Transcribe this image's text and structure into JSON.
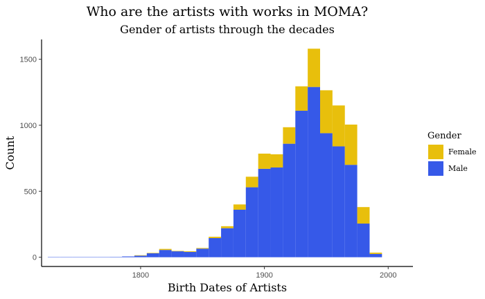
{
  "chart_data": {
    "type": "bar",
    "title": "Who are the artists with works in MOMA?",
    "subtitle": "Gender of artists through the decades",
    "xlabel": "Birth Dates of Artists",
    "ylabel": "Count",
    "xlim": [
      1720,
      2020
    ],
    "ylim": [
      -70,
      1650
    ],
    "x_ticks": [
      1800,
      1900,
      2000
    ],
    "y_ticks": [
      0,
      500,
      1000,
      1500
    ],
    "bin_width": 10,
    "grid": false,
    "stacked": true,
    "legend": {
      "title": "Gender",
      "position": "right",
      "entries": [
        {
          "name": "Female",
          "color": "#E8BF0C"
        },
        {
          "name": "Male",
          "color": "#3659E8"
        }
      ]
    },
    "x": [
      1730,
      1740,
      1750,
      1760,
      1770,
      1780,
      1790,
      1800,
      1810,
      1820,
      1830,
      1840,
      1850,
      1860,
      1870,
      1880,
      1890,
      1900,
      1910,
      1920,
      1930,
      1940,
      1950,
      1960,
      1970,
      1980,
      1990
    ],
    "series": [
      {
        "name": "Male",
        "values": [
          1,
          1,
          2,
          1,
          2,
          3,
          6,
          12,
          30,
          55,
          45,
          40,
          65,
          145,
          220,
          360,
          530,
          670,
          680,
          860,
          1110,
          1290,
          940,
          840,
          700,
          255,
          25
        ]
      },
      {
        "name": "Female",
        "values": [
          0,
          0,
          0,
          0,
          0,
          0,
          0,
          3,
          3,
          8,
          3,
          5,
          5,
          10,
          15,
          40,
          80,
          115,
          100,
          125,
          185,
          290,
          325,
          310,
          305,
          125,
          10
        ]
      }
    ]
  }
}
